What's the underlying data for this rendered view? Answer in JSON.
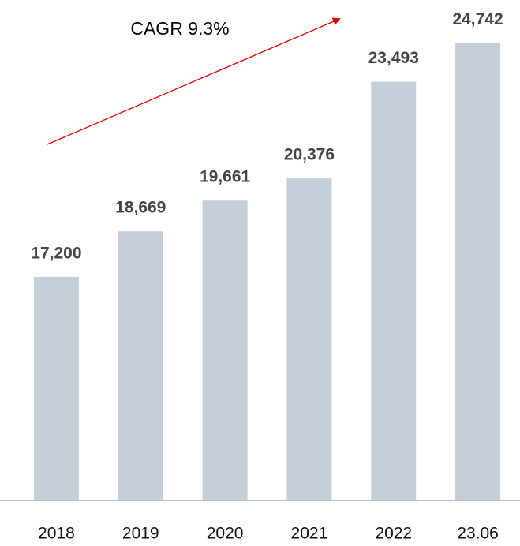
{
  "chart_data": {
    "type": "bar",
    "annotation": "CAGR 9.3%",
    "categories": [
      "2018",
      "2019",
      "2020",
      "2021",
      "2022",
      "23.06"
    ],
    "values": [
      17200,
      18669,
      19661,
      20376,
      23493,
      24742
    ],
    "value_labels": [
      "17,200",
      "18,669",
      "19,661",
      "20,376",
      "23,493",
      "24,742"
    ],
    "color": "#c5cfd9",
    "ylim": [
      10000,
      26000
    ]
  }
}
